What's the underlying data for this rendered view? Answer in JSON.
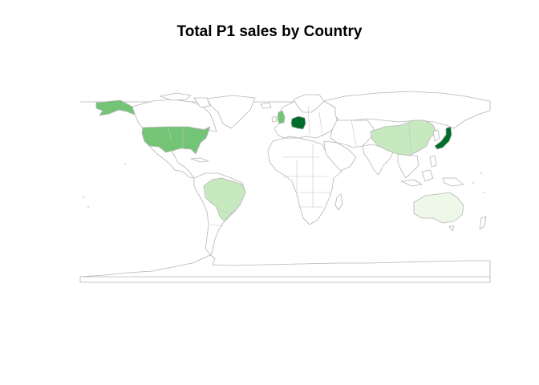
{
  "title": "Total P1 sales by Country",
  "colors": {
    "background": "#ffffff",
    "borders": "#b5b5b5",
    "no_data": "#ffffff",
    "scale": [
      "#edf8e9",
      "#c7e9c0",
      "#a1d99b",
      "#74c476",
      "#31a354",
      "#006d2c"
    ]
  },
  "chart_data": {
    "type": "choropleth",
    "title": "Total P1 sales by Country",
    "projection": "equirectangular",
    "color_scale": "sequential greens (light = lower, dark = higher)",
    "legend": "none",
    "regions": [
      {
        "name": "Germany",
        "shade": "#006d2c"
      },
      {
        "name": "Japan",
        "shade": "#006d2c"
      },
      {
        "name": "United States",
        "shade": "#74c476"
      },
      {
        "name": "United Kingdom",
        "shade": "#74c476"
      },
      {
        "name": "Brazil",
        "shade": "#c7e9c0"
      },
      {
        "name": "China",
        "shade": "#c7e9c0"
      },
      {
        "name": "Australia",
        "shade": "#edf8e9"
      }
    ]
  }
}
